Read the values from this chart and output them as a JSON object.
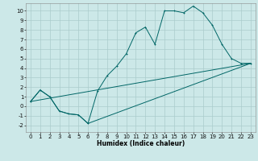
{
  "xlabel": "Humidex (Indice chaleur)",
  "bg_color": "#cce8e8",
  "grid_color": "#aacccc",
  "line_color": "#006666",
  "xlim": [
    -0.5,
    23.5
  ],
  "ylim": [
    -2.7,
    10.8
  ],
  "yticks": [
    -2,
    -1,
    0,
    1,
    2,
    3,
    4,
    5,
    6,
    7,
    8,
    9,
    10
  ],
  "xticks": [
    0,
    1,
    2,
    3,
    4,
    5,
    6,
    7,
    8,
    9,
    10,
    11,
    12,
    13,
    14,
    15,
    16,
    17,
    18,
    19,
    20,
    21,
    22,
    23
  ],
  "line1_x": [
    0,
    1,
    2,
    3,
    4,
    5,
    6,
    7,
    8,
    9,
    10,
    11,
    12,
    13,
    14,
    15,
    16,
    17,
    18,
    19,
    20,
    21,
    22,
    23
  ],
  "line1_y": [
    0.5,
    1.7,
    1.0,
    -0.5,
    -0.8,
    -0.9,
    -1.8,
    1.6,
    3.2,
    4.2,
    5.5,
    7.7,
    8.3,
    6.5,
    10.0,
    10.0,
    9.8,
    10.5,
    9.8,
    8.5,
    6.5,
    5.0,
    4.5,
    4.5
  ],
  "line2_x": [
    0,
    1,
    2,
    3,
    4,
    5,
    6,
    23
  ],
  "line2_y": [
    0.5,
    1.7,
    1.0,
    -0.5,
    -0.8,
    -0.9,
    -1.8,
    4.5
  ],
  "line3_x": [
    0,
    23
  ],
  "line3_y": [
    0.5,
    4.5
  ],
  "xlabel_fontsize": 5.5,
  "tick_fontsize": 5.0,
  "lw": 0.7,
  "ms": 2.0
}
